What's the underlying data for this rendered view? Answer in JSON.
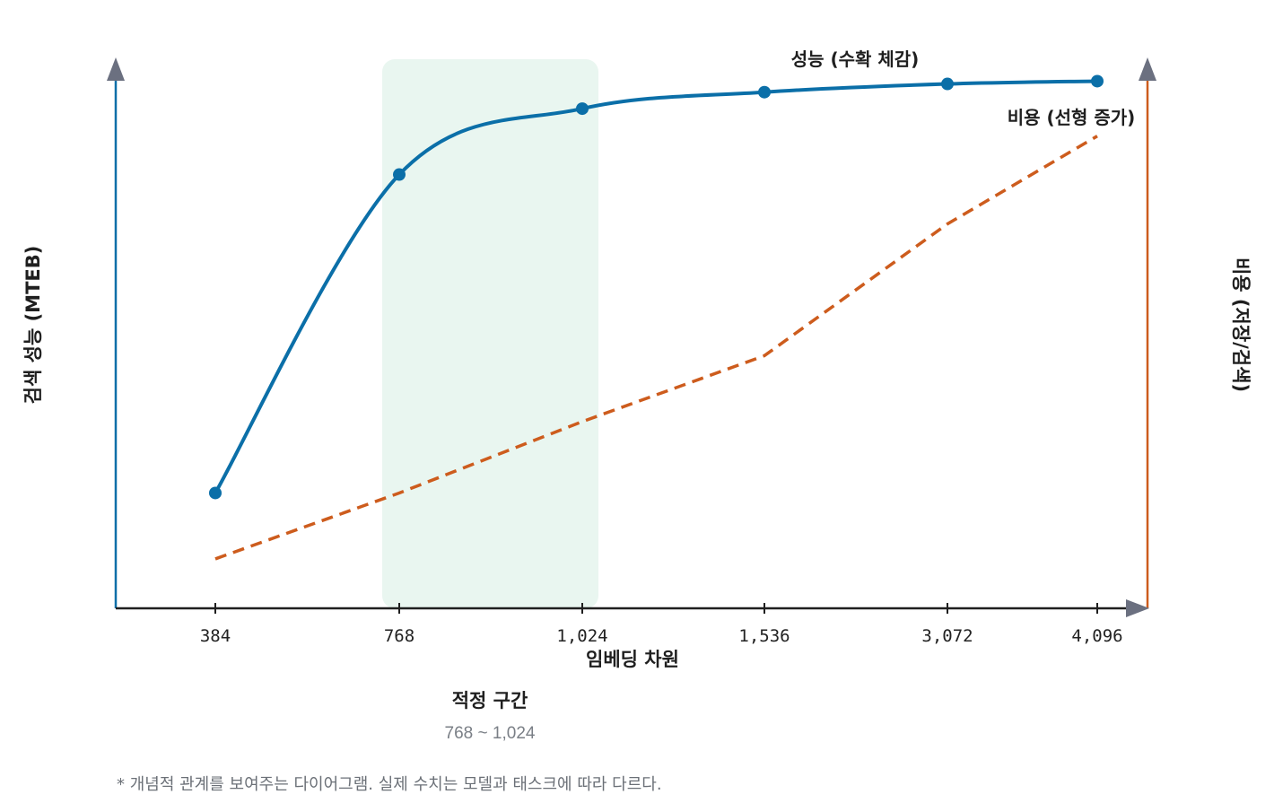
{
  "chart_data": {
    "type": "line",
    "categories": [
      "384",
      "768",
      "1,024",
      "1,536",
      "3,072",
      "4,096"
    ],
    "xlabel": "임베딩 차원",
    "ylabel_left": "검색 성능 (MTEB)",
    "ylabel_right": "비용 (저장/검색)",
    "series": [
      {
        "name": "성능 (수확 체감)",
        "values": [
          0.21,
          0.79,
          0.91,
          0.94,
          0.955,
          0.96
        ],
        "color": "#0b6fa8",
        "style": "solid-markers"
      },
      {
        "name": "비용 (선형 증가)",
        "values": [
          0.09,
          0.21,
          0.34,
          0.46,
          0.7,
          0.86
        ],
        "color": "#cd5c1d",
        "style": "dashed"
      }
    ],
    "ylim": [
      0,
      1
    ],
    "highlight": {
      "from": "768",
      "to": "1,024",
      "title": "적정 구간",
      "range_label": "768 ~ 1,024",
      "color": "#e9f6f0"
    },
    "left_axis_color": "#0b6fa8",
    "right_axis_color": "#cd5c1d",
    "grid": false
  },
  "footnote": "* 개념적 관계를 보여주는 다이어그램. 실제 수치는 모델과 태스크에 따라 다르다."
}
